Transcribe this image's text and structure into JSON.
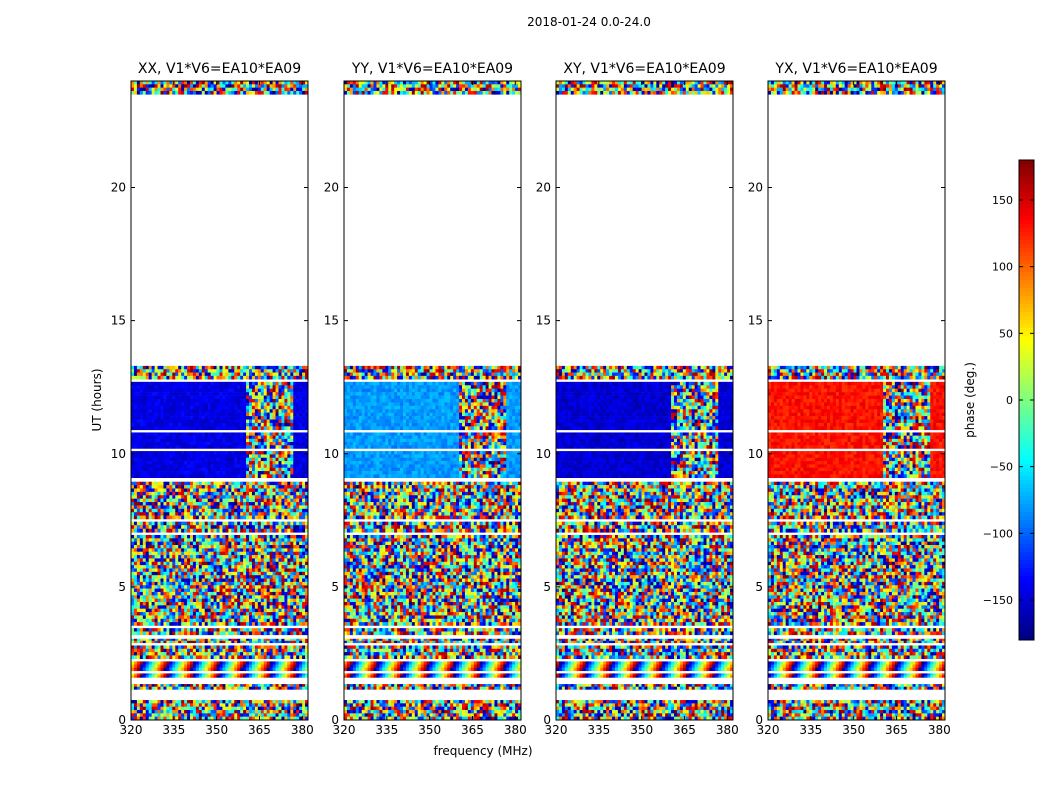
{
  "chart_data": {
    "type": "heatmap",
    "suptitle": "2018-01-24 0.0-24.0",
    "xlabel": "frequency (MHz)",
    "ylabel": "UT (hours)",
    "xlim": [
      320,
      382
    ],
    "ylim": [
      0,
      24
    ],
    "xticks": [
      "320",
      "335",
      "350",
      "365",
      "380"
    ],
    "yticks": [
      "0",
      "5",
      "10",
      "15",
      "20"
    ],
    "panels": [
      {
        "title": "XX, V1*V6=EA10*EA09",
        "stable_phase_deg": -145,
        "stable_band_end_mhz": 360,
        "stable_tail_start_mhz": 377
      },
      {
        "title": "YY, V1*V6=EA10*EA09",
        "stable_phase_deg": -80,
        "stable_band_end_mhz": 360,
        "stable_tail_start_mhz": 377
      },
      {
        "title": "XY, V1*V6=EA10*EA09",
        "stable_phase_deg": -150,
        "stable_band_end_mhz": 360,
        "stable_tail_start_mhz": 377
      },
      {
        "title": "YX, V1*V6=EA10*EA09",
        "stable_phase_deg": 130,
        "stable_band_end_mhz": 360,
        "stable_tail_start_mhz": 377
      }
    ],
    "time_segments_hours": [
      {
        "start": 0.0,
        "end": 0.75,
        "kind": "noise"
      },
      {
        "start": 1.15,
        "end": 1.35,
        "kind": "noise"
      },
      {
        "start": 1.6,
        "end": 1.75,
        "kind": "fringe"
      },
      {
        "start": 1.85,
        "end": 2.2,
        "kind": "fringe"
      },
      {
        "start": 2.3,
        "end": 2.8,
        "kind": "noise"
      },
      {
        "start": 2.9,
        "end": 3.05,
        "kind": "noise"
      },
      {
        "start": 3.2,
        "end": 3.45,
        "kind": "noise"
      },
      {
        "start": 3.55,
        "end": 6.95,
        "kind": "noise"
      },
      {
        "start": 7.05,
        "end": 7.45,
        "kind": "noise"
      },
      {
        "start": 7.55,
        "end": 8.95,
        "kind": "noise"
      },
      {
        "start": 9.1,
        "end": 10.1,
        "kind": "stable"
      },
      {
        "start": 10.2,
        "end": 10.8,
        "kind": "stable"
      },
      {
        "start": 10.9,
        "end": 12.7,
        "kind": "stable"
      },
      {
        "start": 12.8,
        "end": 13.3,
        "kind": "noise"
      },
      {
        "start": 23.5,
        "end": 24.0,
        "kind": "noise"
      }
    ],
    "colorbar": {
      "label": "phase (deg.)",
      "range": [
        -180,
        180
      ],
      "ticks": [
        "150",
        "100",
        "50",
        "0",
        "−50",
        "−100",
        "−150"
      ],
      "colormap": "jet"
    }
  }
}
